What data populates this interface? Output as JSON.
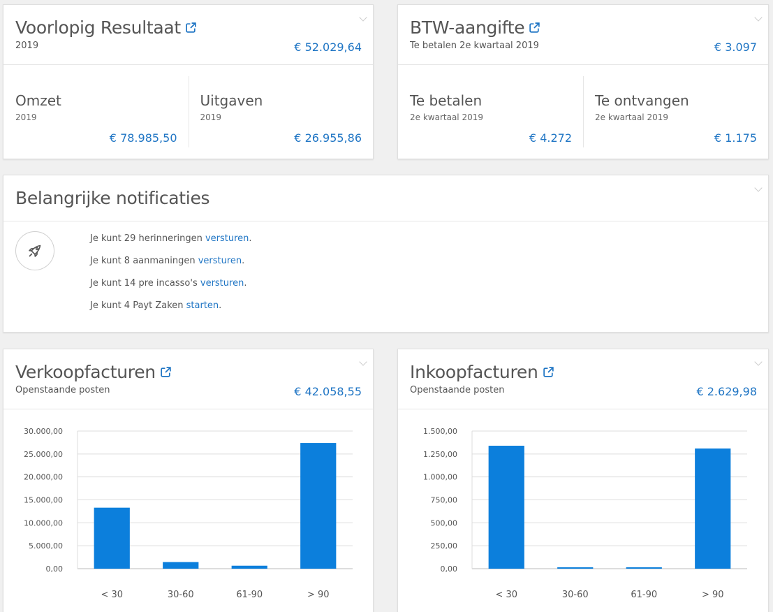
{
  "result_card": {
    "title": "Voorlopig Resultaat",
    "subtitle": "2019",
    "amount": "€ 52.029,64",
    "omzet": {
      "title": "Omzet",
      "subtitle": "2019",
      "amount": "€ 78.985,50"
    },
    "uitgaven": {
      "title": "Uitgaven",
      "subtitle": "2019",
      "amount": "€ 26.955,86"
    }
  },
  "btw_card": {
    "title": "BTW-aangifte",
    "subtitle": "Te betalen 2e kwartaal 2019",
    "amount": "€ 3.097",
    "te_betalen": {
      "title": "Te betalen",
      "subtitle": "2e kwartaal 2019",
      "amount": "€ 4.272"
    },
    "te_ontvangen": {
      "title": "Te ontvangen",
      "subtitle": "2e kwartaal 2019",
      "amount": "€ 1.175"
    }
  },
  "notifications": {
    "title": "Belangrijke notificaties",
    "icon": "rocket-icon",
    "items": [
      {
        "text": "Je kunt 29 herinneringen ",
        "link": "versturen",
        "suffix": "."
      },
      {
        "text": "Je kunt 8 aanmaningen ",
        "link": "versturen",
        "suffix": "."
      },
      {
        "text": "Je kunt 14 pre incasso's ",
        "link": "versturen",
        "suffix": "."
      },
      {
        "text": "Je kunt 4 Payt Zaken ",
        "link": "starten",
        "suffix": "."
      }
    ]
  },
  "verkoop_card": {
    "title": "Verkoopfacturen",
    "subtitle": "Openstaande posten",
    "amount": "€ 42.058,55"
  },
  "inkoop_card": {
    "title": "Inkoopfacturen",
    "subtitle": "Openstaande posten",
    "amount": "€ 2.629,98"
  },
  "colors": {
    "accent": "#1f75c4",
    "bar": "#0c7fdc"
  },
  "chart_data": [
    {
      "type": "bar",
      "categories": [
        "< 30",
        "30-60",
        "61-90",
        "> 90"
      ],
      "values": [
        13300,
        1450,
        650,
        27400
      ],
      "ylim": [
        0,
        30000
      ],
      "yticks": [
        0,
        5000,
        10000,
        15000,
        20000,
        25000,
        30000
      ],
      "ytick_labels": [
        "0,00",
        "5.000,00",
        "10.000,00",
        "15.000,00",
        "20.000,00",
        "25.000,00",
        "30.000,00"
      ],
      "grid": true
    },
    {
      "type": "bar",
      "categories": [
        "< 30",
        "30-60",
        "61-90",
        "> 90"
      ],
      "values": [
        1340,
        15,
        15,
        1310
      ],
      "ylim": [
        0,
        1500
      ],
      "yticks": [
        0,
        250,
        500,
        750,
        1000,
        1250,
        1500
      ],
      "ytick_labels": [
        "0,00",
        "250,00",
        "500,00",
        "750,00",
        "1.000,00",
        "1.250,00",
        "1.500,00"
      ],
      "grid": true
    }
  ]
}
